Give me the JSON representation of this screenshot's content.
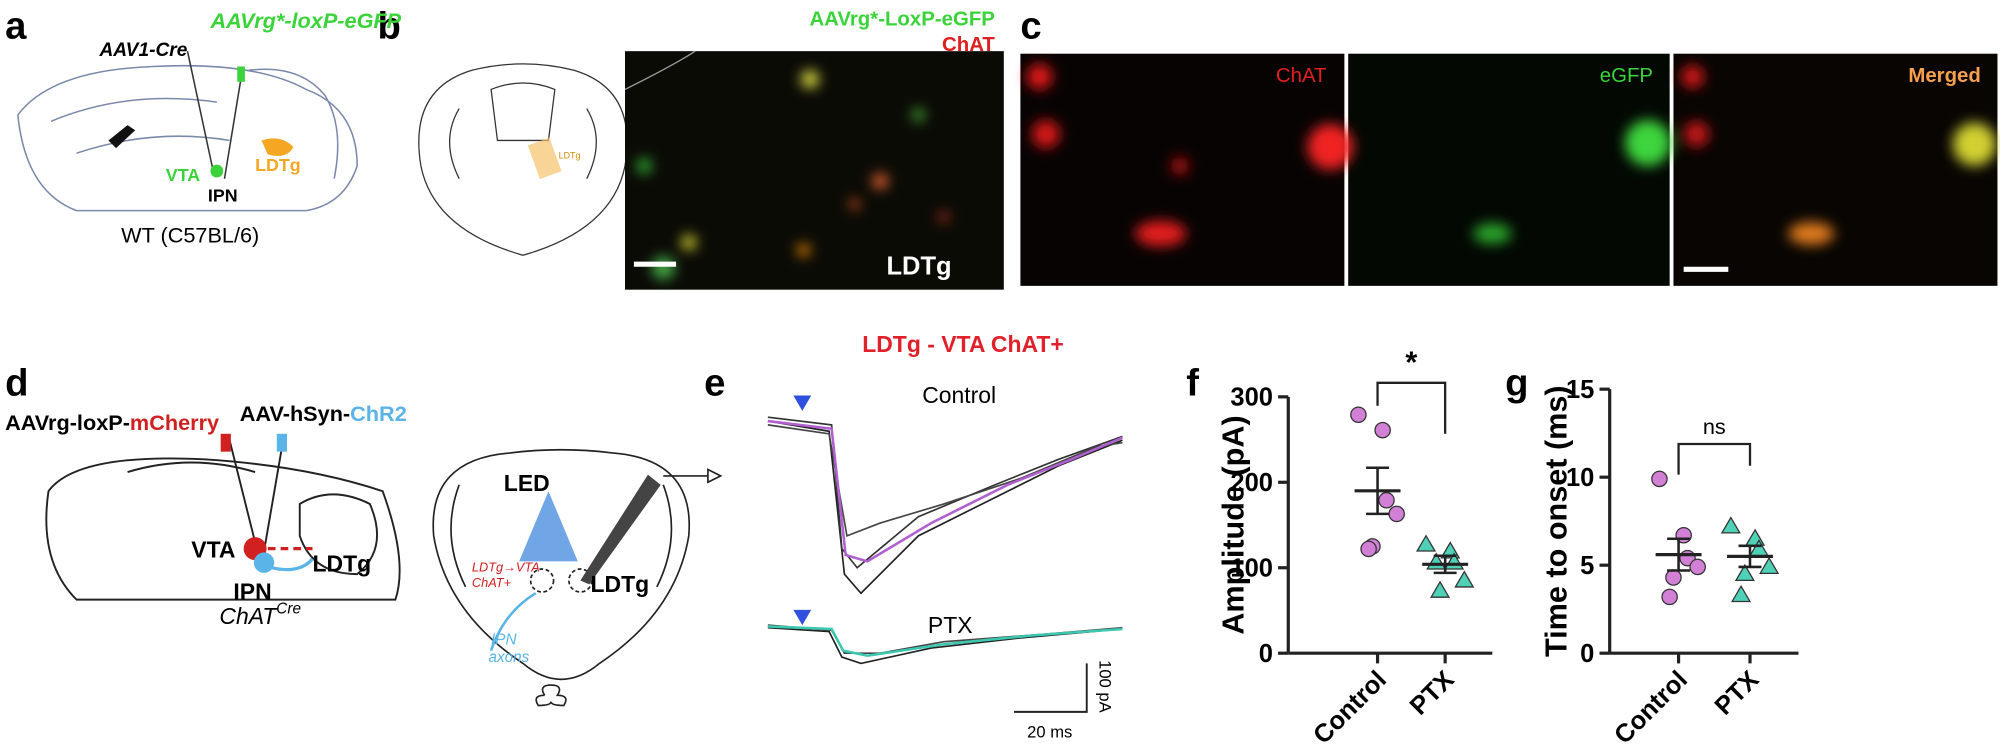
{
  "panel_labels": [
    "a",
    "b",
    "c",
    "d",
    "e",
    "f",
    "g"
  ],
  "panel_a": {
    "injection_1": "AAV1-Cre",
    "injection_2": "AAVrg*-loxP-eGFP",
    "vta": "VTA",
    "ldtg": "LDTg",
    "ipn": "IPN",
    "mouse": "WT (C57BL/6)"
  },
  "panel_b": {
    "schematic_label": "LDTg",
    "green_label": "AAVrg*-LoxP-eGFP",
    "red_label": "ChAT",
    "region": "LDTg"
  },
  "panel_c": {
    "labels": [
      "ChAT",
      "eGFP",
      "Merged"
    ]
  },
  "panel_d": {
    "virus_1_prefix": "AAVrg-loxP-",
    "virus_1_suffix": "mCherry",
    "virus_2_prefix": "AAV-hSyn-",
    "virus_2_suffix": "ChR2",
    "vta": "VTA",
    "ldtg": "LDTg",
    "ipn": "IPN",
    "genotype": "ChAT",
    "genotype_sup": "Cre",
    "led": "LED",
    "projection_1": "LDTg→VTA",
    "projection_2": "ChAT+",
    "slice_ldtg": "LDTg",
    "axons_1": "IPN",
    "axons_2": "axons"
  },
  "panel_e": {
    "title": "LDTg - VTA ChAT+",
    "condition_1": "Control",
    "condition_2": "PTX",
    "scale_y": "100 pA",
    "scale_x": "20 ms"
  },
  "chart_data": [
    {
      "type": "dot",
      "ylabel": "Amplitude (pA)",
      "categories": [
        "Control",
        "PTX"
      ],
      "ylim": [
        0,
        300
      ],
      "yticks": [
        0,
        100,
        200,
        300
      ],
      "points": [
        [
          279,
          261,
          179,
          163,
          125,
          122
        ],
        [
          127,
          119,
          106,
          85,
          73,
          106
        ]
      ],
      "means": [
        190,
        104
      ],
      "sems": [
        27,
        10
      ],
      "colors": [
        "#d27fd6",
        "#4fd1b8"
      ],
      "markers": [
        "circle",
        "triangle"
      ],
      "significance": "*"
    },
    {
      "type": "dot",
      "ylabel": "Time to onset (ms)",
      "categories": [
        "Control",
        "PTX"
      ],
      "ylim": [
        0,
        15
      ],
      "yticks": [
        0,
        5,
        10,
        15
      ],
      "points": [
        [
          9.9,
          6.7,
          5.4,
          4.9,
          4.3,
          3.2
        ],
        [
          7.2,
          6.5,
          5.9,
          4.9,
          4.5,
          3.3
        ]
      ],
      "means": [
        5.6,
        5.5
      ],
      "sems": [
        0.9,
        0.6
      ],
      "colors": [
        "#d27fd6",
        "#4fd1b8"
      ],
      "markers": [
        "circle",
        "triangle"
      ],
      "significance": "ns"
    }
  ]
}
